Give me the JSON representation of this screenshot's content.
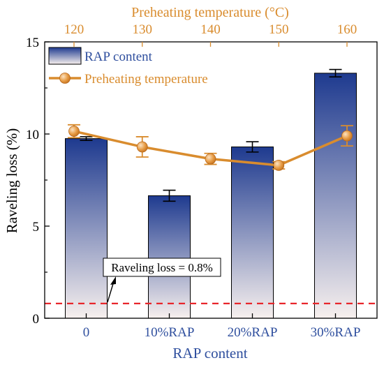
{
  "chart_data": {
    "type": "bar",
    "xlabel": "RAP content",
    "ylabel": "Raveling loss (%)",
    "ylim": [
      0,
      15
    ],
    "y_ticks": [
      "0",
      "5",
      "10",
      "15"
    ],
    "categories": [
      "0",
      "10%RAP",
      "20%RAP",
      "30%RAP"
    ],
    "series": [
      {
        "name": "RAP content",
        "kind": "bar",
        "values": [
          9.75,
          6.65,
          9.3,
          13.3
        ],
        "errors": [
          0.1,
          0.3,
          0.28,
          0.2
        ]
      },
      {
        "name": "Preheating temperature",
        "kind": "line",
        "x": [
          120,
          130,
          140,
          150,
          160
        ],
        "values": [
          10.15,
          9.3,
          8.65,
          8.3,
          9.9
        ],
        "errors": [
          0.35,
          0.55,
          0.3,
          0.2,
          0.55
        ]
      }
    ],
    "top_axis": {
      "label": "Preheating temperature (°C)",
      "ticks": [
        "120",
        "130",
        "140",
        "150",
        "160"
      ]
    },
    "reference_line": {
      "value": 0.8,
      "label": "Raveling loss = 0.8%"
    },
    "legend_position": "top-left",
    "grid": false
  },
  "colors": {
    "bar_top": "#1e3a8f",
    "bar_bottom": "#f7f0ee",
    "line": "#d98c2e",
    "reference": "#e8262b",
    "top_axis": "#d98c2e",
    "bottom_axis_labels": "#2f4f9e"
  }
}
